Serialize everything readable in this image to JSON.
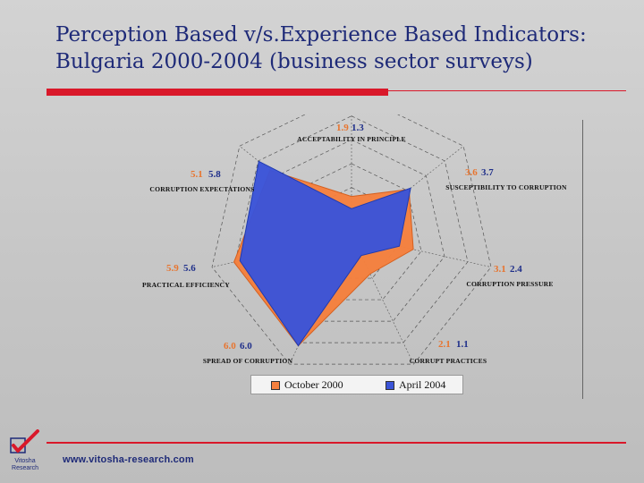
{
  "slide": {
    "title_line1": "Perception Based  v/s.Experience Based Indicators:",
    "title_line2": "Bulgaria 2000-2004 (business sector surveys)",
    "footer_url": "www.vitosha-research.com",
    "logo_text_line1": "Vitosha",
    "logo_text_line2": "Research"
  },
  "colors": {
    "title": "#1e2a78",
    "accent_red": "#d9182a",
    "october_2000": "#f5803e",
    "april_2004": "#3b54d8"
  },
  "chart_data": {
    "type": "radar",
    "axes": [
      "ACCEPTABILITY IN PRINCIPLE",
      "SUSCEPTIBILITY TO CORRUPTION",
      "CORRUPTION PRESSURE",
      "CORRUPT PRACTICES",
      "SPREAD OF CORRUPTION",
      "PRACTICAL EFFICIENCY",
      "CORRUPTION EXPECTATIONS"
    ],
    "series": [
      {
        "name": "October 2000",
        "values": [
          1.9,
          3.6,
          3.1,
          2.1,
          6.0,
          5.9,
          5.1
        ],
        "labels": [
          "1.9",
          "3.6",
          "3.1",
          "2.1",
          "6.0",
          "5.9",
          "5.1"
        ]
      },
      {
        "name": "April 2004",
        "values": [
          1.3,
          3.7,
          2.4,
          1.1,
          6.0,
          5.6,
          5.8
        ],
        "labels": [
          "1.3",
          "3.7",
          "2.4",
          "1.1",
          "6.0",
          "5.6",
          "5.8"
        ]
      }
    ],
    "scale_max": 7,
    "rings": 6,
    "legend": "bottom"
  }
}
